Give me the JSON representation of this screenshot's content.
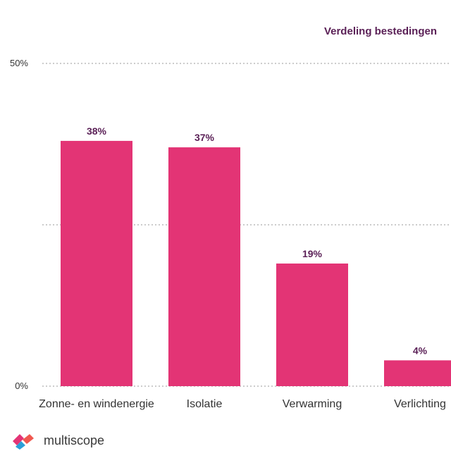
{
  "header": {
    "title": "Verdeling bestedingen"
  },
  "brand": {
    "name": "multiscope"
  },
  "colors": {
    "bar": "#e33475",
    "label": "#5b2157",
    "grid": "#9a9a9a",
    "axis_text": "#333333"
  },
  "chart_data": {
    "type": "bar",
    "title": "Verdeling bestedingen",
    "categories": [
      "Zonne- en windenergie",
      "Isolatie",
      "Verwarming",
      "Verlichting"
    ],
    "values": [
      38,
      37,
      19,
      4
    ],
    "value_labels": [
      "38%",
      "37%",
      "19%",
      "4%"
    ],
    "ylim": [
      0,
      50
    ],
    "yticks": [
      0,
      25,
      50
    ],
    "ytick_labels": [
      "0%",
      "",
      "50%"
    ],
    "grid": true,
    "xlabel": "",
    "ylabel": ""
  }
}
